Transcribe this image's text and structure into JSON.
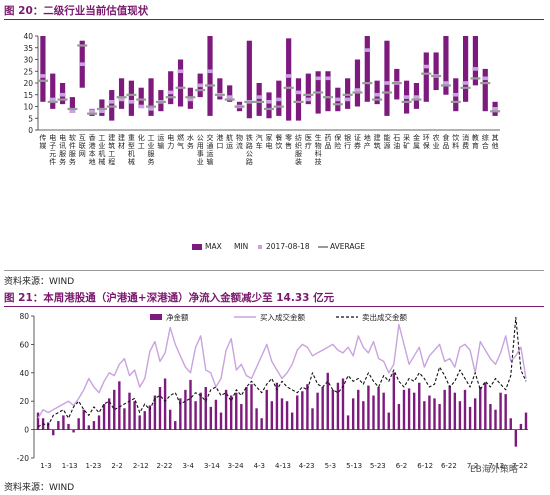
{
  "fig20": {
    "title": "图 20：二级行业当前估值现状",
    "source": "资料来源：WIND"
  },
  "fig21": {
    "title": "图 21：本周港股通（沪港通+深港通）净流入金额减少至 14.33 亿元",
    "source": "资料来源：WIND"
  },
  "watermark": "EB海外策略",
  "colors": {
    "purple": "#7d1a7e",
    "light_purple": "#c9a3df",
    "title": "#7a1a6e",
    "avg": "#9a9a9a"
  },
  "chart_data": [
    {
      "type": "range_bar",
      "title": "",
      "ylim": [
        0,
        40
      ],
      "yticks": [
        0,
        5,
        10,
        15,
        20,
        25,
        30,
        35,
        40
      ],
      "categories": [
        "传媒",
        "电子元件",
        "电讯服务",
        "软件服务",
        "互联网",
        "香港本地",
        "工业机械",
        "建筑工程",
        "建材",
        "重型机械",
        "化工",
        "工业服务",
        "运输",
        "电力",
        "燃气",
        "水务",
        "公用事业",
        "交通运输",
        "港口",
        "航运",
        "物流",
        "铁路公路",
        "汽车",
        "家电",
        "餐饮",
        "零售",
        "纺织服装",
        "医疗",
        "生物科技",
        "药品",
        "保险",
        "银行",
        "证券",
        "地产",
        "建筑",
        "能源",
        "石油",
        "采矿",
        "金属",
        "环保",
        "农业",
        "食品",
        "饮料",
        "消费",
        "教育",
        "综合",
        "其他"
      ],
      "series": [
        {
          "name": "MAX",
          "values": [
            40,
            24,
            20,
            14,
            38,
            9,
            13,
            17,
            22,
            21,
            18,
            22,
            17,
            25,
            30,
            18,
            24,
            40,
            22,
            19,
            12,
            38,
            20,
            16,
            21,
            39,
            22,
            24,
            25,
            25,
            18,
            22,
            30,
            40,
            21,
            38,
            26,
            21,
            20,
            33,
            33,
            40,
            22,
            40,
            40,
            26,
            12
          ]
        },
        {
          "name": "MIN",
          "values": [
            12,
            9,
            11,
            8,
            18,
            6,
            6,
            4,
            9,
            6,
            10,
            6,
            8,
            11,
            10,
            9,
            14,
            6,
            13,
            12,
            8,
            5,
            6,
            5,
            6,
            4,
            4,
            11,
            7,
            8,
            8,
            9,
            10,
            12,
            11,
            6,
            13,
            7,
            9,
            12,
            17,
            15,
            8,
            12,
            19,
            8,
            6
          ]
        },
        {
          "name": "2017-08-18",
          "values": [
            23,
            13,
            15,
            8,
            28,
            8,
            8,
            12,
            13,
            12,
            10,
            9,
            12,
            16,
            25,
            13,
            19,
            25,
            15,
            14,
            10,
            12,
            14,
            12,
            13,
            23,
            16,
            13,
            22,
            22,
            13,
            13,
            17,
            34,
            15,
            20,
            20,
            14,
            14,
            27,
            23,
            20,
            15,
            20,
            26,
            22,
            9
          ]
        },
        {
          "name": "AVERAGE",
          "values": [
            21,
            12,
            13,
            9,
            36,
            7,
            9,
            10,
            14,
            15,
            13,
            10,
            12,
            14,
            18,
            14,
            17,
            19,
            15,
            13,
            10,
            12,
            12,
            9,
            10,
            18,
            12,
            15,
            16,
            14,
            11,
            15,
            16,
            20,
            13,
            16,
            20,
            12,
            13,
            24,
            23,
            19,
            12,
            18,
            22,
            20,
            8
          ]
        }
      ],
      "legend": [
        "MAX",
        "MIN",
        "2017-08-18",
        "AVERAGE"
      ],
      "legend_position": "bottom-right",
      "grid": false
    },
    {
      "type": "bar_line",
      "title": "",
      "ylim": [
        -20,
        80
      ],
      "yticks": [
        -20,
        0,
        20,
        40,
        60,
        80
      ],
      "x_tick_labels": [
        "1-3",
        "1-13",
        "1-23",
        "2-2",
        "2-12",
        "2-22",
        "3-4",
        "3-14",
        "3-24",
        "4-3",
        "4-13",
        "4-23",
        "5-3",
        "5-13",
        "5-23",
        "6-2",
        "6-12",
        "6-22",
        "7-2",
        "7-12",
        "7-22"
      ],
      "legend_position": "top",
      "series": [
        {
          "name": "净金额",
          "type": "bar",
          "values": [
            12,
            8,
            5,
            -4,
            6,
            10,
            4,
            -2,
            8,
            14,
            3,
            6,
            10,
            18,
            22,
            28,
            34,
            15,
            26,
            20,
            10,
            13,
            17,
            24,
            30,
            36,
            14,
            6,
            22,
            28,
            35,
            20,
            26,
            30,
            16,
            21,
            12,
            28,
            24,
            26,
            18,
            30,
            32,
            15,
            8,
            28,
            20,
            33,
            22,
            20,
            12,
            24,
            27,
            32,
            15,
            26,
            30,
            40,
            28,
            33,
            36,
            10,
            22,
            28,
            20,
            31,
            24,
            30,
            26,
            12,
            40,
            18,
            28,
            29,
            26,
            33,
            20,
            24,
            22,
            18,
            28,
            31,
            26,
            20,
            28,
            16,
            22,
            30,
            33,
            18,
            14,
            26,
            25,
            8,
            -12,
            4,
            12
          ]
        },
        {
          "name": "买入成交金额",
          "type": "line",
          "values": [
            8,
            14,
            12,
            14,
            16,
            18,
            20,
            17,
            22,
            28,
            36,
            30,
            26,
            34,
            40,
            38,
            46,
            50,
            38,
            42,
            30,
            36,
            55,
            62,
            48,
            54,
            72,
            60,
            52,
            44,
            40,
            58,
            66,
            42,
            40,
            30,
            36,
            56,
            64,
            42,
            46,
            38,
            36,
            44,
            52,
            60,
            48,
            42,
            36,
            40,
            46,
            56,
            60,
            58,
            52,
            54,
            56,
            58,
            60,
            56,
            54,
            58,
            52,
            66,
            58,
            54,
            62,
            50,
            48,
            40,
            46,
            74,
            60,
            46,
            52,
            58,
            44,
            52,
            56,
            60,
            48,
            50,
            44,
            58,
            60,
            56,
            40,
            62,
            56,
            50,
            46,
            54,
            66,
            48,
            52,
            58,
            36
          ]
        },
        {
          "name": "卖出成交金额",
          "type": "line",
          "values": [
            2,
            4,
            3,
            10,
            12,
            14,
            8,
            16,
            20,
            14,
            10,
            16,
            12,
            18,
            20,
            14,
            16,
            18,
            20,
            22,
            12,
            18,
            14,
            22,
            24,
            20,
            24,
            26,
            18,
            20,
            22,
            26,
            24,
            20,
            28,
            30,
            24,
            26,
            20,
            28,
            24,
            30,
            34,
            30,
            26,
            32,
            36,
            28,
            34,
            30,
            28,
            26,
            30,
            28,
            40,
            32,
            30,
            34,
            28,
            26,
            30,
            38,
            34,
            36,
            32,
            40,
            34,
            30,
            38,
            34,
            42,
            34,
            30,
            36,
            34,
            40,
            36,
            30,
            32,
            44,
            38,
            30,
            34,
            42,
            36,
            30,
            40,
            28,
            34,
            30,
            36,
            32,
            28,
            38,
            79,
            42,
            34
          ]
        }
      ],
      "grid": false
    }
  ]
}
